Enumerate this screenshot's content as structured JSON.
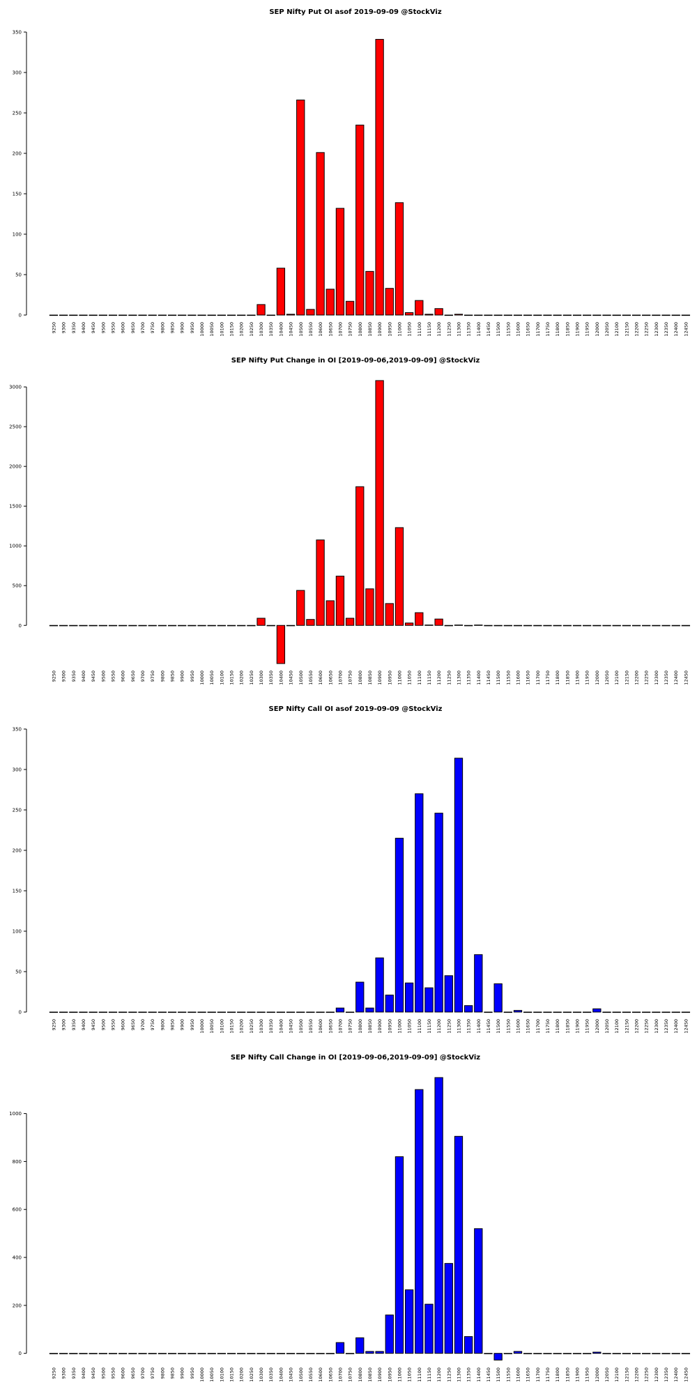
{
  "chart_data": [
    {
      "type": "bar",
      "title": "SEP Nifty Put OI asof 2019-09-09 @StockViz",
      "color": "#ff0000",
      "ylim": [
        0,
        350
      ],
      "yticks": [
        0,
        50,
        100,
        150,
        200,
        250,
        300,
        350
      ],
      "categories": [
        "9250",
        "9300",
        "9350",
        "9400",
        "9450",
        "9500",
        "9550",
        "9600",
        "9650",
        "9700",
        "9750",
        "9800",
        "9850",
        "9900",
        "9950",
        "10000",
        "10050",
        "10100",
        "10150",
        "10200",
        "10250",
        "10300",
        "10350",
        "10400",
        "10450",
        "10500",
        "10550",
        "10600",
        "10650",
        "10700",
        "10750",
        "10800",
        "10850",
        "10900",
        "10950",
        "11000",
        "11050",
        "11100",
        "11150",
        "11200",
        "11250",
        "11300",
        "11350",
        "11400",
        "11450",
        "11500",
        "11550",
        "11600",
        "11650",
        "11700",
        "11750",
        "11800",
        "11850",
        "11900",
        "11950",
        "12000",
        "12050",
        "12100",
        "12150",
        "12200",
        "12250",
        "12300",
        "12350",
        "12400",
        "12450"
      ],
      "values": [
        0,
        0,
        0,
        0,
        0,
        0,
        0,
        0,
        0,
        0,
        0,
        0,
        0,
        0,
        0,
        0,
        0,
        0,
        0,
        0,
        0,
        13,
        0,
        58,
        1,
        266,
        7,
        201,
        32,
        132,
        17,
        235,
        54,
        341,
        33,
        139,
        3,
        18,
        1,
        8,
        0,
        1,
        0,
        0,
        0,
        0,
        0,
        0,
        0,
        0,
        0,
        0,
        0,
        0,
        0,
        0,
        0,
        0,
        0,
        0,
        0,
        0,
        0,
        0,
        0
      ]
    },
    {
      "type": "bar",
      "title": "SEP Nifty Put Change in OI [2019-09-06,2019-09-09] @StockViz",
      "color": "#ff0000",
      "ylim": [
        -480,
        3080
      ],
      "yticks": [
        0,
        500,
        1000,
        1500,
        2000,
        2500,
        3000
      ],
      "categories": [
        "9250",
        "9300",
        "9350",
        "9400",
        "9450",
        "9500",
        "9550",
        "9600",
        "9650",
        "9700",
        "9750",
        "9800",
        "9850",
        "9900",
        "9950",
        "10000",
        "10050",
        "10100",
        "10150",
        "10200",
        "10250",
        "10300",
        "10350",
        "10400",
        "10450",
        "10500",
        "10550",
        "10600",
        "10650",
        "10700",
        "10750",
        "10800",
        "10850",
        "10900",
        "10950",
        "11000",
        "11050",
        "11100",
        "11150",
        "11200",
        "11250",
        "11300",
        "11350",
        "11400",
        "11450",
        "11500",
        "11550",
        "11600",
        "11650",
        "11700",
        "11750",
        "11800",
        "11850",
        "11900",
        "11950",
        "12000",
        "12050",
        "12100",
        "12150",
        "12200",
        "12250",
        "12300",
        "12350",
        "12400",
        "12450"
      ],
      "values": [
        0,
        0,
        0,
        0,
        0,
        0,
        0,
        0,
        0,
        0,
        0,
        0,
        0,
        0,
        0,
        0,
        0,
        0,
        0,
        0,
        0,
        90,
        0,
        -480,
        0,
        440,
        75,
        1075,
        310,
        620,
        90,
        1745,
        460,
        3080,
        275,
        1230,
        30,
        160,
        5,
        80,
        0,
        5,
        0,
        5,
        0,
        0,
        0,
        0,
        0,
        0,
        0,
        0,
        0,
        0,
        0,
        0,
        0,
        0,
        0,
        0,
        0,
        0,
        0,
        0,
        0
      ]
    },
    {
      "type": "bar",
      "title": "SEP Nifty Call OI asof 2019-09-09 @StockViz",
      "color": "#0000ff",
      "ylim": [
        0,
        350
      ],
      "yticks": [
        0,
        50,
        100,
        150,
        200,
        250,
        300,
        350
      ],
      "categories": [
        "9250",
        "9300",
        "9350",
        "9400",
        "9450",
        "9500",
        "9550",
        "9600",
        "9650",
        "9700",
        "9750",
        "9800",
        "9850",
        "9900",
        "9950",
        "10000",
        "10050",
        "10100",
        "10150",
        "10200",
        "10250",
        "10300",
        "10350",
        "10400",
        "10450",
        "10500",
        "10550",
        "10600",
        "10650",
        "10700",
        "10750",
        "10800",
        "10850",
        "10900",
        "10950",
        "11000",
        "11050",
        "11100",
        "11150",
        "11200",
        "11250",
        "11300",
        "11350",
        "11400",
        "11450",
        "11500",
        "11550",
        "11600",
        "11650",
        "11700",
        "11750",
        "11800",
        "11850",
        "11900",
        "11950",
        "12000",
        "12050",
        "12100",
        "12150",
        "12200",
        "12250",
        "12300",
        "12350",
        "12400",
        "12450"
      ],
      "values": [
        0,
        0,
        0,
        0,
        0,
        0,
        0,
        0,
        0,
        0,
        0,
        0,
        0,
        0,
        0,
        0,
        0,
        0,
        0,
        0,
        0,
        0,
        0,
        0,
        0,
        0,
        0,
        0,
        0,
        5,
        0,
        37,
        5,
        67,
        21,
        215,
        36,
        270,
        30,
        246,
        45,
        314,
        8,
        71,
        0,
        35,
        0,
        2,
        0,
        0,
        0,
        0,
        0,
        0,
        0,
        4,
        0,
        0,
        0,
        0,
        0,
        0,
        0,
        0,
        0
      ]
    },
    {
      "type": "bar",
      "title": "SEP Nifty Call Change in OI [2019-09-06,2019-09-09] @StockViz",
      "color": "#0000ff",
      "ylim": [
        -30,
        1150
      ],
      "yticks": [
        0,
        200,
        400,
        600,
        800,
        1000
      ],
      "categories": [
        "9250",
        "9300",
        "9350",
        "9400",
        "9450",
        "9500",
        "9550",
        "9600",
        "9650",
        "9700",
        "9750",
        "9800",
        "9850",
        "9900",
        "9950",
        "10000",
        "10050",
        "10100",
        "10150",
        "10200",
        "10250",
        "10300",
        "10350",
        "10400",
        "10450",
        "10500",
        "10550",
        "10600",
        "10650",
        "10700",
        "10750",
        "10800",
        "10850",
        "10900",
        "10950",
        "11000",
        "11050",
        "11100",
        "11150",
        "11200",
        "11250",
        "11300",
        "11350",
        "11400",
        "11450",
        "11500",
        "11550",
        "11600",
        "11650",
        "11700",
        "11750",
        "11800",
        "11850",
        "11900",
        "11950",
        "12000",
        "12050",
        "12100",
        "12150",
        "12200",
        "12250",
        "12300",
        "12350",
        "12400",
        "12450"
      ],
      "values": [
        0,
        0,
        0,
        0,
        0,
        0,
        0,
        0,
        0,
        0,
        0,
        0,
        0,
        0,
        0,
        0,
        0,
        0,
        0,
        0,
        0,
        0,
        0,
        0,
        0,
        0,
        0,
        0,
        0,
        45,
        0,
        65,
        8,
        8,
        160,
        820,
        265,
        1100,
        205,
        1150,
        375,
        905,
        70,
        520,
        0,
        -28,
        0,
        8,
        0,
        0,
        0,
        0,
        0,
        0,
        0,
        5,
        0,
        0,
        0,
        0,
        0,
        0,
        0,
        0,
        0
      ]
    }
  ]
}
